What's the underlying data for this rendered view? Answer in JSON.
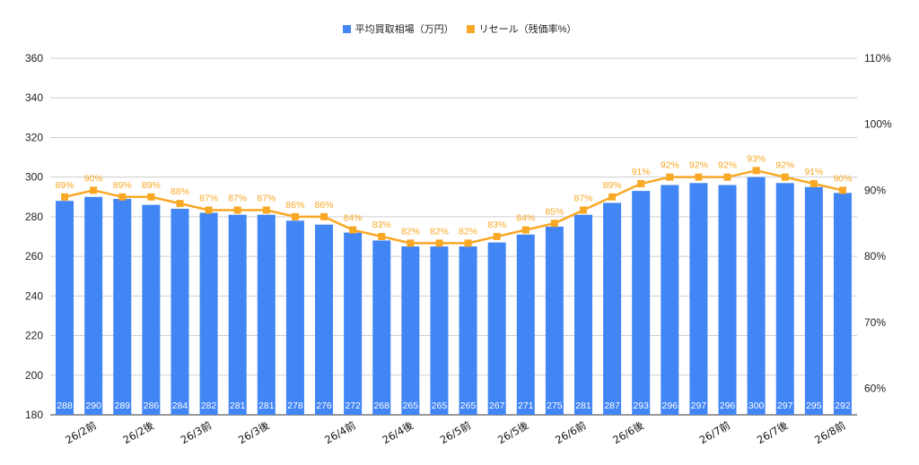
{
  "chart_data": {
    "type": "bar",
    "categories": [
      "",
      "26/2前",
      "",
      "26/2後",
      "",
      "26/3前",
      "",
      "26/3後",
      "",
      "",
      "26/4前",
      "",
      "26/4後",
      "",
      "26/5前",
      "",
      "26/5後",
      "",
      "26/6前",
      "",
      "26/6後",
      "",
      "",
      "26/7前",
      "",
      "26/7後",
      "",
      "26/8前"
    ],
    "series": [
      {
        "name": "平均買取相場（万円）",
        "axis": "left",
        "kind": "bar",
        "color": "#4285f4",
        "values": [
          288,
          290,
          289,
          286,
          284,
          282,
          281,
          281,
          278,
          276,
          272,
          268,
          265,
          265,
          265,
          267,
          271,
          275,
          281,
          287,
          293,
          296,
          297,
          296,
          300,
          297,
          295,
          292
        ],
        "labels": [
          "288",
          "290",
          "289",
          "286",
          "284",
          "282",
          "281",
          "281",
          "278",
          "276",
          "272",
          "268",
          "265",
          "265",
          "265",
          "267",
          "271",
          "275",
          "281",
          "287",
          "293",
          "296",
          "297",
          "296",
          "300",
          "297",
          "295",
          "292"
        ]
      },
      {
        "name": "リセール（残価率%）",
        "axis": "right",
        "kind": "line",
        "color": "#f9a825",
        "values": [
          89,
          90,
          89,
          89,
          88,
          87,
          87,
          87,
          86,
          86,
          84,
          83,
          82,
          82,
          82,
          83,
          84,
          85,
          87,
          89,
          91,
          92,
          92,
          92,
          93,
          92,
          91,
          90
        ],
        "labels": [
          "89%",
          "90%",
          "89%",
          "89%",
          "88%",
          "87%",
          "87%",
          "87%",
          "86%",
          "86%",
          "84%",
          "83%",
          "82%",
          "82%",
          "82%",
          "83%",
          "84%",
          "85%",
          "87%",
          "89%",
          "91%",
          "92%",
          "92%",
          "92%",
          "93%",
          "92%",
          "91%",
          "90%"
        ]
      }
    ],
    "y_left": {
      "min": 180,
      "max": 360,
      "ticks": [
        "180",
        "200",
        "220",
        "240",
        "260",
        "280",
        "300",
        "320",
        "340",
        "360"
      ]
    },
    "y_right": {
      "min": 56,
      "max": 110,
      "ticks": [
        "60%",
        "70%",
        "80%",
        "90%",
        "100%",
        "110%"
      ],
      "tick_values": [
        60,
        70,
        80,
        90,
        100,
        110
      ]
    },
    "grid": true,
    "legend_position": "top-center"
  }
}
